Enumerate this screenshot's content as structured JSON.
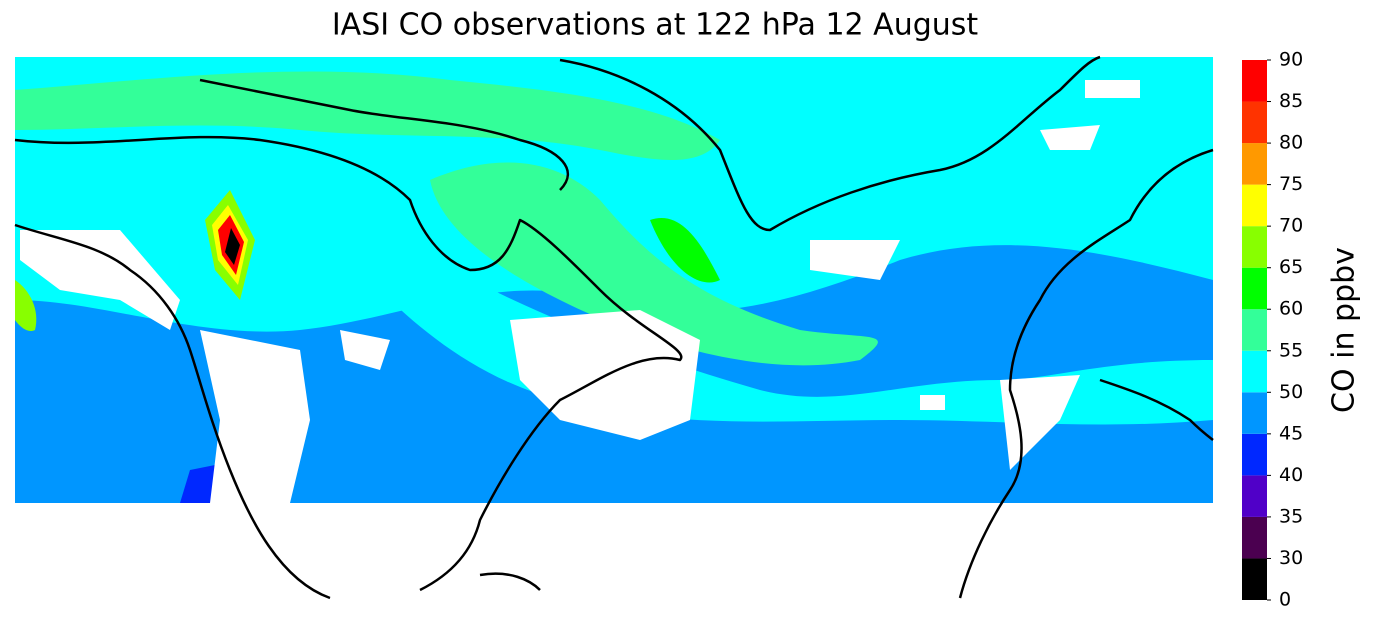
{
  "title": "IASI CO observations at 122 hPa  12 August",
  "colorbar": {
    "label": "CO in ppbv",
    "ticks": [
      0,
      30,
      35,
      40,
      45,
      50,
      55,
      60,
      65,
      70,
      75,
      80,
      85,
      90
    ],
    "colors": [
      "#000000",
      "#4b0050",
      "#5000c8",
      "#0028ff",
      "#0096ff",
      "#00ffff",
      "#33ff99",
      "#00ff00",
      "#88ff00",
      "#ffff00",
      "#ff9900",
      "#ff3300",
      "#ff0000"
    ]
  }
}
